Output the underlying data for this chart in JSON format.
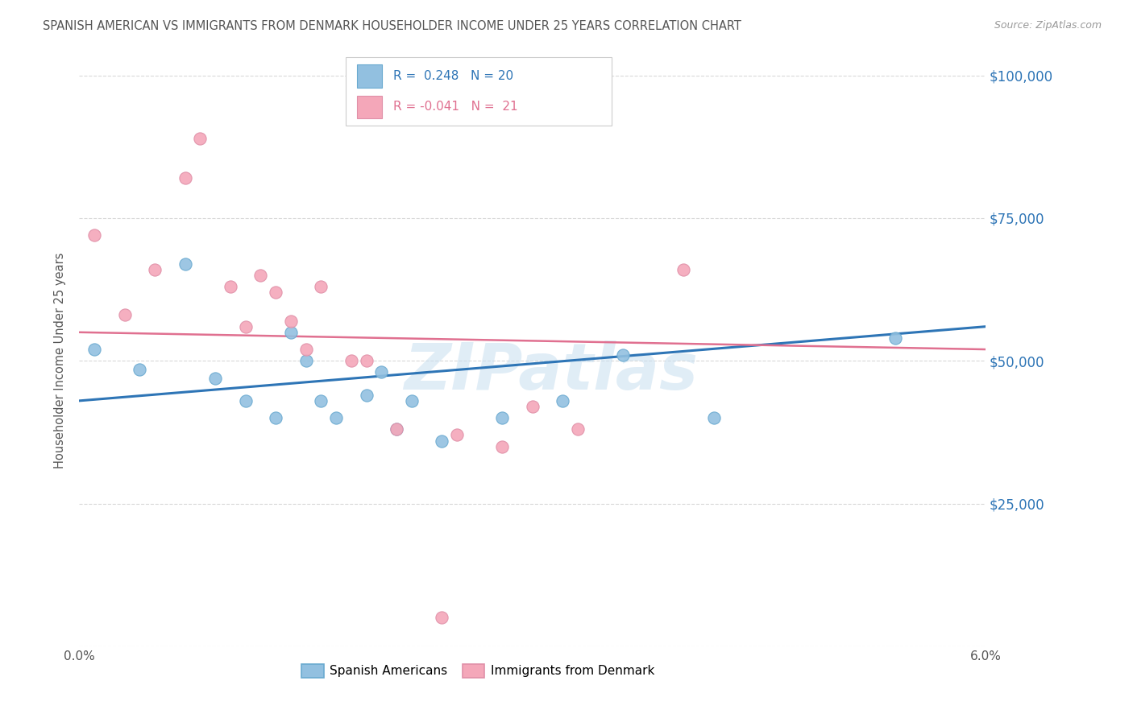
{
  "title": "SPANISH AMERICAN VS IMMIGRANTS FROM DENMARK HOUSEHOLDER INCOME UNDER 25 YEARS CORRELATION CHART",
  "source": "Source: ZipAtlas.com",
  "ylabel": "Householder Income Under 25 years",
  "xlim": [
    0,
    0.06
  ],
  "ylim": [
    0,
    100000
  ],
  "yticks": [
    0,
    25000,
    50000,
    75000,
    100000
  ],
  "xticks": [
    0.0,
    0.01,
    0.02,
    0.03,
    0.04,
    0.05,
    0.06
  ],
  "blue_color": "#92c0e0",
  "pink_color": "#f4a7b9",
  "blue_line_color": "#2E75B6",
  "pink_line_color": "#e07090",
  "axis_label_color": "#2E75B6",
  "title_color": "#555555",
  "grid_color": "#d8d8d8",
  "background_color": "#ffffff",
  "watermark": "ZIPatlas",
  "blue_scatter_x": [
    0.001,
    0.004,
    0.007,
    0.009,
    0.011,
    0.013,
    0.014,
    0.015,
    0.016,
    0.017,
    0.019,
    0.02,
    0.021,
    0.022,
    0.024,
    0.028,
    0.032,
    0.036,
    0.042,
    0.054
  ],
  "blue_scatter_y": [
    52000,
    48500,
    67000,
    47000,
    43000,
    40000,
    55000,
    50000,
    43000,
    40000,
    44000,
    48000,
    38000,
    43000,
    36000,
    40000,
    43000,
    51000,
    40000,
    54000
  ],
  "pink_scatter_x": [
    0.001,
    0.003,
    0.005,
    0.007,
    0.008,
    0.01,
    0.011,
    0.012,
    0.013,
    0.014,
    0.015,
    0.016,
    0.018,
    0.019,
    0.021,
    0.025,
    0.033,
    0.04,
    0.024,
    0.028,
    0.03
  ],
  "pink_scatter_y": [
    72000,
    58000,
    66000,
    82000,
    89000,
    63000,
    56000,
    65000,
    62000,
    57000,
    52000,
    63000,
    50000,
    50000,
    38000,
    37000,
    38000,
    66000,
    5000,
    35000,
    42000
  ],
  "blue_line_x": [
    0.0,
    0.06
  ],
  "blue_line_y": [
    43000,
    56000
  ],
  "pink_line_x": [
    0.0,
    0.06
  ],
  "pink_line_y": [
    55000,
    52000
  ],
  "legend_text1": "R =  0.248   N = 20",
  "legend_text2": "R = -0.041   N =  21"
}
